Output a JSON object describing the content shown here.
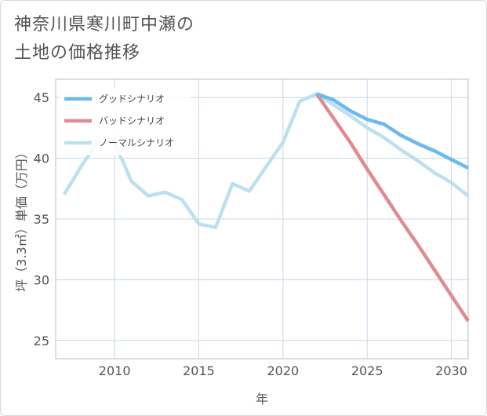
{
  "title_lines": [
    "神奈川県寒川町中瀬の",
    "土地の価格推移"
  ],
  "colors": {
    "good": "#6cb8ef",
    "bad": "#e08a92",
    "normal": "#bde0ee",
    "grid": "#c9d7e6",
    "axis": "#bbbbbb"
  },
  "chart_data": {
    "type": "line",
    "title": "神奈川県寒川町中瀬の土地の価格推移",
    "xlabel": "年",
    "ylabel": "坪（3.3㎡）単価（万円）",
    "xlim": [
      2006.5,
      2031
    ],
    "ylim": [
      23.5,
      46.5
    ],
    "xticks": [
      2010,
      2015,
      2020,
      2025,
      2030
    ],
    "yticks": [
      25,
      30,
      35,
      40,
      45
    ],
    "grid": true,
    "legend_position": "top-left",
    "series": [
      {
        "name": "グッドシナリオ",
        "color": "#6cb8ef",
        "points": [
          [
            2022,
            45.3
          ],
          [
            2023,
            44.8
          ],
          [
            2024,
            43.9
          ],
          [
            2025,
            43.2
          ],
          [
            2026,
            42.8
          ],
          [
            2027,
            41.9
          ],
          [
            2028,
            41.2
          ],
          [
            2029,
            40.6
          ],
          [
            2030,
            39.9
          ],
          [
            2031,
            39.2
          ]
        ]
      },
      {
        "name": "バッドシナリオ",
        "color": "#e08a92",
        "points": [
          [
            2022,
            45.3
          ],
          [
            2023,
            43.3
          ],
          [
            2024,
            41.3
          ],
          [
            2025,
            39.1
          ],
          [
            2026,
            37.0
          ],
          [
            2027,
            34.9
          ],
          [
            2028,
            32.9
          ],
          [
            2029,
            30.8
          ],
          [
            2030,
            28.7
          ],
          [
            2031,
            26.6
          ]
        ]
      },
      {
        "name": "ノーマルシナリオ",
        "color": "#bde0ee",
        "points": [
          [
            2007,
            37.0
          ],
          [
            2008,
            39.3
          ],
          [
            2009,
            41.4
          ],
          [
            2010,
            41.3
          ],
          [
            2011,
            38.1
          ],
          [
            2012,
            36.9
          ],
          [
            2013,
            37.2
          ],
          [
            2014,
            36.6
          ],
          [
            2015,
            34.6
          ],
          [
            2016,
            34.3
          ],
          [
            2017,
            37.9
          ],
          [
            2018,
            37.3
          ],
          [
            2019,
            39.3
          ],
          [
            2020,
            41.3
          ],
          [
            2021,
            44.7
          ],
          [
            2022,
            45.3
          ],
          [
            2023,
            44.4
          ],
          [
            2024,
            43.5
          ],
          [
            2025,
            42.5
          ],
          [
            2026,
            41.7
          ],
          [
            2027,
            40.7
          ],
          [
            2028,
            39.8
          ],
          [
            2029,
            38.8
          ],
          [
            2030,
            38.0
          ],
          [
            2031,
            36.9
          ]
        ]
      }
    ]
  }
}
